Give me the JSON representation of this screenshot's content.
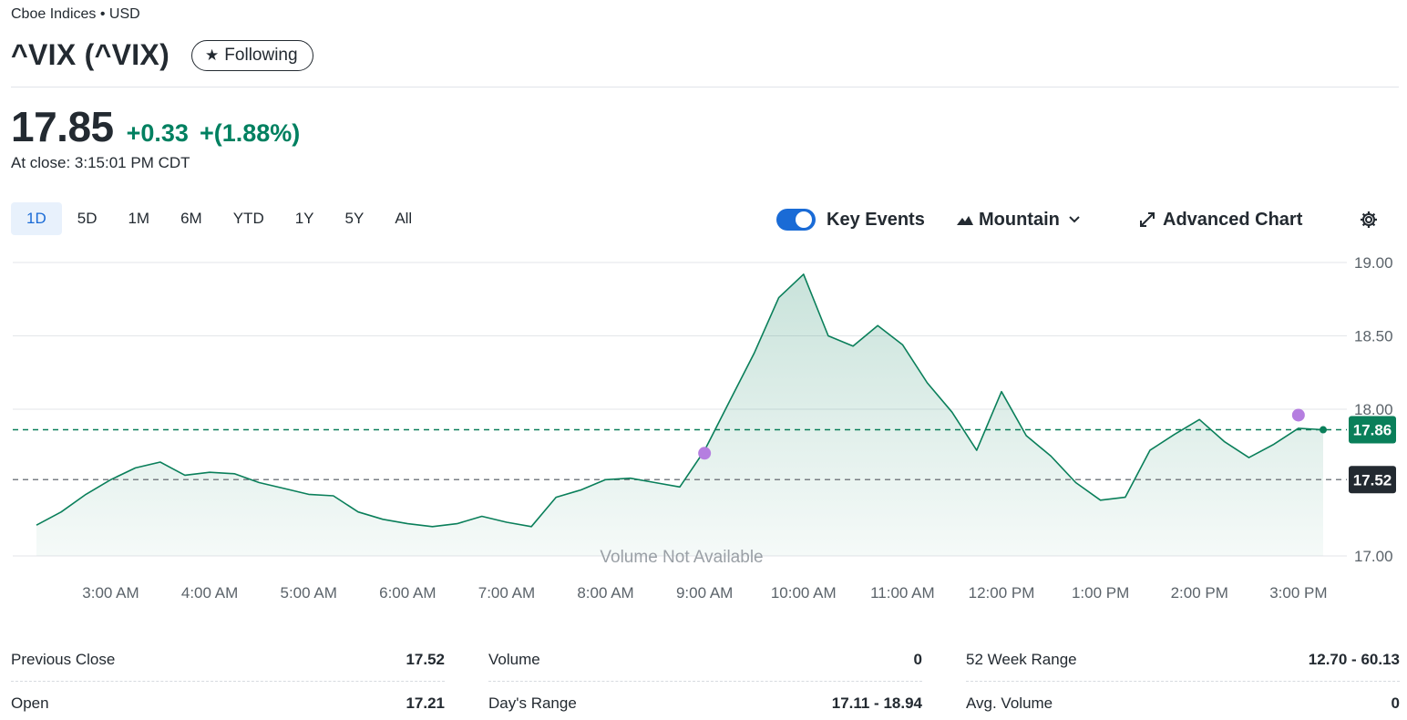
{
  "header": {
    "exchange": "Cboe Indices • USD",
    "title": "^VIX (^VIX)",
    "follow_label": "Following",
    "price": "17.85",
    "change": "+0.33",
    "change_pct": "+(1.88%)",
    "close_time": "At close: 3:15:01 PM CDT"
  },
  "ranges": [
    "1D",
    "5D",
    "1M",
    "6M",
    "YTD",
    "1Y",
    "5Y",
    "All"
  ],
  "active_range": "1D",
  "tools": {
    "key_events_label": "Key Events",
    "key_events_on": true,
    "chart_type_label": "Mountain",
    "advanced_label": "Advanced Chart"
  },
  "colors": {
    "accent": "#1a6bd6",
    "positive": "#008060",
    "prev_close_badge": "#232a31",
    "key_event": "#b57ee0"
  },
  "chart_data": {
    "type": "area",
    "x": [
      "2:15 AM",
      "2:30 AM",
      "2:45 AM",
      "3:00 AM",
      "3:15 AM",
      "3:30 AM",
      "3:45 AM",
      "4:00 AM",
      "4:15 AM",
      "4:30 AM",
      "4:45 AM",
      "5:00 AM",
      "5:15 AM",
      "5:30 AM",
      "5:45 AM",
      "6:00 AM",
      "6:15 AM",
      "6:30 AM",
      "6:45 AM",
      "7:00 AM",
      "7:15 AM",
      "7:30 AM",
      "7:45 AM",
      "8:00 AM",
      "8:15 AM",
      "8:30 AM",
      "8:45 AM",
      "9:00 AM",
      "9:15 AM",
      "9:30 AM",
      "9:45 AM",
      "10:00 AM",
      "10:15 AM",
      "10:30 AM",
      "10:45 AM",
      "11:00 AM",
      "11:15 AM",
      "11:30 AM",
      "11:45 AM",
      "12:00 PM",
      "12:15 PM",
      "12:30 PM",
      "12:45 PM",
      "1:00 PM",
      "1:15 PM",
      "1:30 PM",
      "1:45 PM",
      "2:00 PM",
      "2:15 PM",
      "2:30 PM",
      "2:45 PM",
      "3:00 PM",
      "3:15 PM"
    ],
    "values": [
      17.21,
      17.3,
      17.42,
      17.52,
      17.6,
      17.64,
      17.55,
      17.57,
      17.56,
      17.5,
      17.46,
      17.42,
      17.41,
      17.3,
      17.25,
      17.22,
      17.2,
      17.22,
      17.27,
      17.23,
      17.2,
      17.4,
      17.45,
      17.52,
      17.53,
      17.5,
      17.47,
      17.72,
      18.05,
      18.38,
      18.76,
      18.92,
      18.5,
      18.43,
      18.57,
      18.44,
      18.18,
      17.98,
      17.72,
      18.12,
      17.82,
      17.68,
      17.5,
      17.38,
      17.4,
      17.72,
      17.83,
      17.93,
      17.78,
      17.67,
      17.76,
      17.87,
      17.86
    ],
    "ylim": [
      17.0,
      19.0
    ],
    "yticks": [
      "17.00",
      "18.00",
      "18.50",
      "19.00"
    ],
    "xticks": [
      "3:00 AM",
      "4:00 AM",
      "5:00 AM",
      "6:00 AM",
      "7:00 AM",
      "8:00 AM",
      "9:00 AM",
      "10:00 AM",
      "11:00 AM",
      "12:00 PM",
      "1:00 PM",
      "2:00 PM",
      "3:00 PM"
    ],
    "previous_close": 17.52,
    "previous_close_label": "17.52",
    "current_label": "17.86",
    "current_value": 17.86,
    "key_events": [
      {
        "x": "9:00 AM",
        "value": 17.7
      },
      {
        "x": "3:00 PM",
        "value": 17.96
      }
    ],
    "overlay_text": "Volume Not Available"
  },
  "stats": [
    [
      {
        "label": "Previous Close",
        "value": "17.52"
      },
      {
        "label": "Open",
        "value": "17.21"
      }
    ],
    [
      {
        "label": "Volume",
        "value": "0"
      },
      {
        "label": "Day's Range",
        "value": "17.11 - 18.94"
      }
    ],
    [
      {
        "label": "52 Week Range",
        "value": "12.70 - 60.13"
      },
      {
        "label": "Avg. Volume",
        "value": "0"
      }
    ]
  ]
}
